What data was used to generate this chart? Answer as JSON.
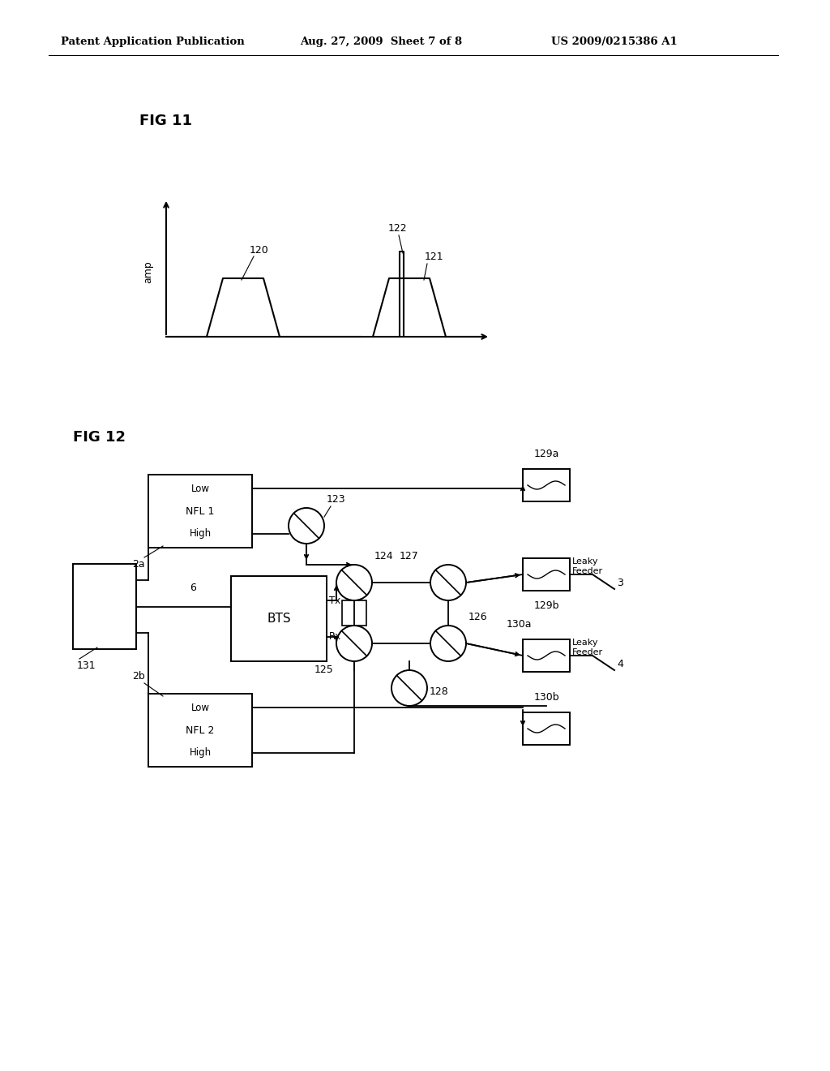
{
  "bg_color": "#ffffff",
  "header_left": "Patent Application Publication",
  "header_mid": "Aug. 27, 2009  Sheet 7 of 8",
  "header_right": "US 2009/0215386 A1",
  "fig11_label": "FIG 11",
  "fig12_label": "FIG 12",
  "amp_label": "amp"
}
